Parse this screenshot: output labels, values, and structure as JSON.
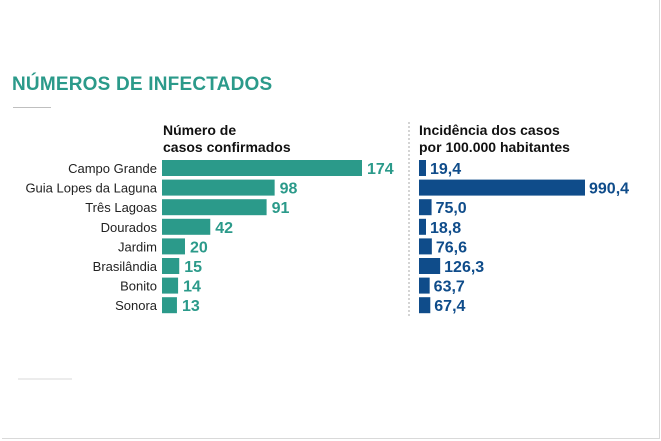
{
  "title": "NÚMEROS DE INFECTADOS",
  "colors": {
    "title": "#2b9a8a",
    "teal": "#2b9a8a",
    "blue": "#0f4c8a",
    "divider": "#a8a8a8"
  },
  "chart_data": [
    {
      "type": "bar",
      "orientation": "horizontal",
      "title_lines": [
        "Número de",
        "casos confirmados"
      ],
      "categories": [
        "Campo Grande",
        "Guia Lopes da Laguna",
        "Três Lagoas",
        "Dourados",
        "Jardim",
        "Brasilândia",
        "Bonito",
        "Sonora"
      ],
      "values": [
        174,
        98,
        91,
        42,
        20,
        15,
        14,
        13
      ],
      "value_labels": [
        "174",
        "98",
        "91",
        "42",
        "20",
        "15",
        "14",
        "13"
      ],
      "color": "#2b9a8a"
    },
    {
      "type": "bar",
      "orientation": "horizontal",
      "title_lines": [
        "Incidência dos casos",
        "por 100.000 habitantes"
      ],
      "categories": [
        "Campo Grande",
        "Guia Lopes da Laguna",
        "Três Lagoas",
        "Dourados",
        "Jardim",
        "Brasilândia",
        "Bonito",
        "Sonora"
      ],
      "values": [
        19.4,
        990.4,
        75.0,
        18.8,
        76.6,
        126.3,
        63.7,
        67.4
      ],
      "value_labels": [
        "19,4",
        "990,4",
        "75,0",
        "18,8",
        "76,6",
        "126,3",
        "63,7",
        "67,4"
      ],
      "color": "#0f4c8a"
    }
  ]
}
